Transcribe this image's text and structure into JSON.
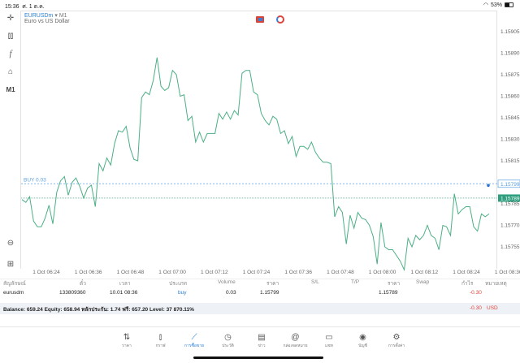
{
  "status_bar": {
    "time": "15:36",
    "date": "ศ. 1 ต.ค.",
    "battery": "53%",
    "battery_level": 0.53
  },
  "chart": {
    "symbol": "EURUSDm",
    "arrow": "▾",
    "timeframe": "M1",
    "description": "Euro vs US Dollar",
    "tools": {
      "crosshair": "crosshair-icon",
      "indicators": "candles-icon",
      "functions": "function-icon",
      "objects": "shapes-icon",
      "period": "M1"
    },
    "trade_line": {
      "label": "BUY 0.03",
      "price": "1.15799",
      "color": "#5a9fe0"
    },
    "bid_line": {
      "price": "1.15789",
      "color": "#2e9e7e"
    },
    "line_color": "#4caf85"
  },
  "chart_data": {
    "type": "line",
    "y_ticks": [
      "1.15905",
      "1.15890",
      "1.15875",
      "1.15860",
      "1.15845",
      "1.15830",
      "1.15815",
      "1.15785",
      "1.15770",
      "1.15755"
    ],
    "x_ticks": [
      "1 Oct 06:24",
      "1 Oct 06:36",
      "1 Oct 06:48",
      "1 Oct 07:00",
      "1 Oct 07:12",
      "1 Oct 07:24",
      "1 Oct 07:36",
      "1 Oct 07:48",
      "1 Oct 08:00",
      "1 Oct 08:12",
      "1 Oct 08:24",
      "1 Oct 08:36"
    ],
    "ylim": [
      1.15745,
      1.1591
    ],
    "values": [
      1.15788,
      1.15786,
      1.1579,
      1.15773,
      1.15769,
      1.15769,
      1.15775,
      1.15784,
      1.15771,
      1.15793,
      1.15801,
      1.15804,
      1.15791,
      1.158,
      1.15803,
      1.15797,
      1.15789,
      1.15796,
      1.15798,
      1.15783,
      1.15813,
      1.15808,
      1.15817,
      1.15812,
      1.15827,
      1.15836,
      1.15835,
      1.15839,
      1.15824,
      1.15816,
      1.15815,
      1.15859,
      1.15863,
      1.15861,
      1.15871,
      1.15887,
      1.15867,
      1.15864,
      1.15866,
      1.15878,
      1.15875,
      1.1586,
      1.15861,
      1.15843,
      1.15846,
      1.15828,
      1.15835,
      1.15828,
      1.15834,
      1.15834,
      1.15834,
      1.15848,
      1.15844,
      1.15849,
      1.15844,
      1.1585,
      1.15847,
      1.15876,
      1.15878,
      1.15878,
      1.15863,
      1.15861,
      1.15848,
      1.15843,
      1.1584,
      1.15846,
      1.15844,
      1.15834,
      1.15836,
      1.15827,
      1.15832,
      1.15818,
      1.15825,
      1.15825,
      1.15823,
      1.15828,
      1.15821,
      1.15817,
      1.15814,
      1.15814,
      1.15813,
      1.15776,
      1.15783,
      1.15779,
      1.15757,
      1.15777,
      1.15768,
      1.15779,
      1.15775,
      1.15774,
      1.1577,
      1.15762,
      1.15743,
      1.15772,
      1.15755,
      1.15753,
      1.15753,
      1.15749,
      1.15745,
      1.15739,
      1.15761,
      1.15755,
      1.15763,
      1.1576,
      1.15763,
      1.1577,
      1.15763,
      1.15761,
      1.15753,
      1.1577,
      1.15769,
      1.15763,
      1.15792,
      1.15778,
      1.15781,
      1.15783,
      1.15783,
      1.15769,
      1.15766,
      1.15778,
      1.15776,
      1.15778
    ]
  },
  "positions": {
    "headers": [
      "สัญลักษณ์",
      "ตั๋ว",
      "เวลา",
      "ประเภท",
      "Volume",
      "ราคา",
      "S/L",
      "T/P",
      "ราคา",
      "Swap",
      "กำไร",
      "หมายเหตุ"
    ],
    "rows": [
      {
        "symbol": "eurusdm",
        "ticket": "133809360",
        "time": "10.01 08:36",
        "type": "buy",
        "volume": "0.03",
        "open_price": "1.15799",
        "sl": "",
        "tp": "",
        "price": "1.15789",
        "swap": "",
        "profit": "-0.30",
        "comment": ""
      }
    ],
    "summary": "Balance: 659.24 Equity: 658.94 หลักประกัน: 1.74 ฟรี: 657.20 Level: 37 870.11%",
    "total_profit": "-0.30",
    "currency": "USD"
  },
  "nav": [
    {
      "label": "ราคา",
      "icon": "quotes-icon",
      "glyph": "⇅"
    },
    {
      "label": "กราฟ",
      "icon": "chart-icon",
      "glyph": "⫾"
    },
    {
      "label": "การซื้อขาย",
      "icon": "trade-icon",
      "glyph": "⟋",
      "active": true
    },
    {
      "label": "ประวัติ",
      "icon": "history-icon",
      "glyph": "◷"
    },
    {
      "label": "ข่าว",
      "icon": "news-icon",
      "glyph": "▤"
    },
    {
      "label": "กล่องจดหมาย",
      "icon": "mail-icon",
      "glyph": "@"
    },
    {
      "label": "แชท",
      "icon": "chat-icon",
      "glyph": "▭"
    },
    {
      "label": "บัญชี",
      "icon": "account-icon",
      "glyph": "◉"
    },
    {
      "label": "การตั้งค่า",
      "icon": "settings-icon",
      "glyph": "⚙"
    }
  ]
}
